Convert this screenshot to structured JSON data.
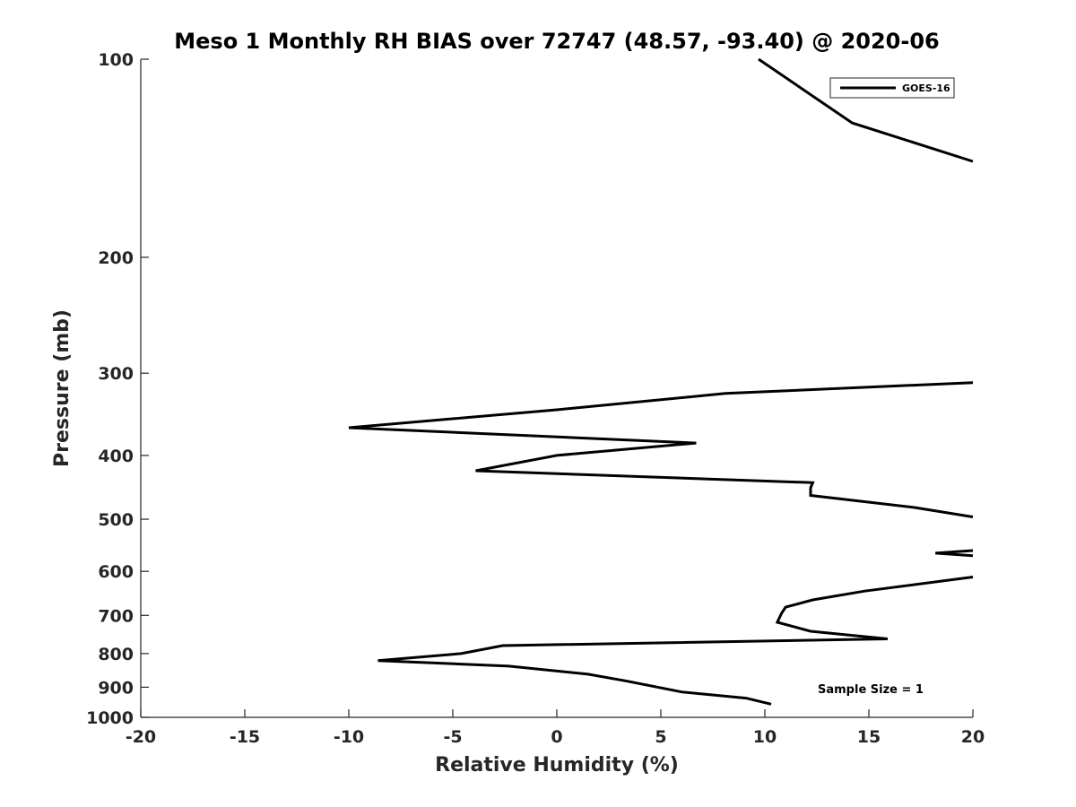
{
  "chart_data": {
    "type": "line",
    "title": "Meso 1 Monthly RH BIAS over 72747 (48.57, -93.40) @ 2020-06",
    "xlabel": "Relative Humidity (%)",
    "ylabel": "Pressure (mb)",
    "xlim": [
      -20,
      20
    ],
    "ylim": [
      100,
      1000
    ],
    "y_scale": "log",
    "y_direction": "reversed",
    "xticks": [
      -20,
      -15,
      -10,
      -5,
      0,
      5,
      10,
      15,
      20
    ],
    "yticks": [
      100,
      200,
      300,
      400,
      500,
      600,
      700,
      800,
      900,
      1000
    ],
    "grid": false,
    "legend_position": "top-right",
    "series": [
      {
        "name": "GOES-16",
        "color": "#000000",
        "segments": [
          {
            "x": [
              9.7,
              14.2,
              20.0
            ],
            "y": [
              100,
              125,
              143
            ]
          },
          {
            "x": [
              20.0,
              8.1,
              0.0,
              -10.0,
              6.7,
              0.0,
              -3.9,
              12.3,
              12.2,
              12.2,
              17.2,
              20.0
            ],
            "y": [
              310,
              322,
              341,
              363,
              383,
              400,
              422,
              440,
              448,
              460,
              480,
              496
            ]
          },
          {
            "x": [
              20.0,
              18.2,
              20.0
            ],
            "y": [
              558,
              563,
              568
            ]
          },
          {
            "x": [
              20.0,
              14.8,
              12.3,
              11.0,
              10.8,
              10.6,
              12.2,
              15.9,
              -2.6,
              -4.6,
              -8.6,
              -2.3,
              1.5,
              3.3,
              6.0,
              9.1,
              10.3
            ],
            "y": [
              612,
              643,
              663,
              680,
              695,
              717,
              740,
              760,
              778,
              800,
              820,
              836,
              860,
              880,
              915,
              935,
              955
            ]
          }
        ]
      }
    ],
    "annotations": [
      {
        "text": "Sample Size = 1",
        "x": 15.0,
        "y": 905
      }
    ]
  }
}
